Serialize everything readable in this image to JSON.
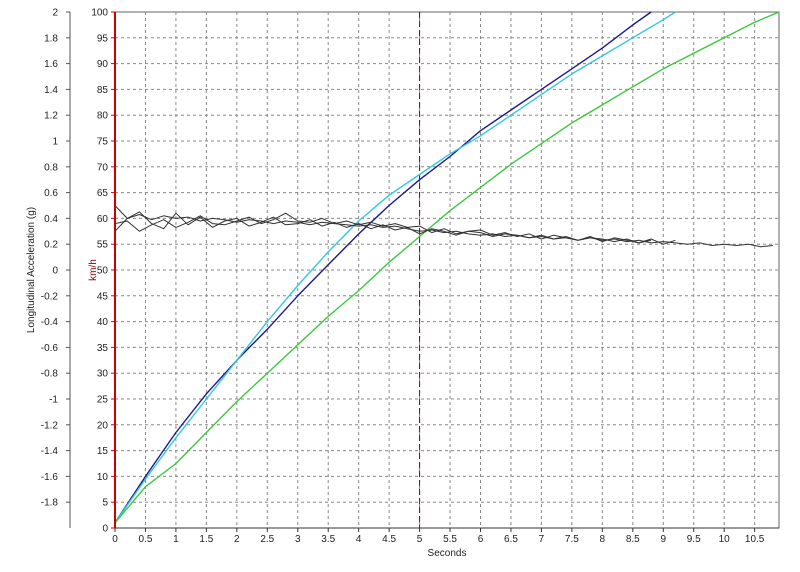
{
  "chart_data": {
    "type": "line",
    "title": "",
    "xlabel": "Seconds",
    "ylabel_left": "Longitudinal Acceleration (g)",
    "ylabel_right": "km/h",
    "xlim": [
      0,
      10.9
    ],
    "ylim_left": [
      -2,
      2
    ],
    "ylim_right": [
      0,
      100
    ],
    "grid": true,
    "cursor_x": 5,
    "x_ticks": [
      "0",
      "0.5",
      "1",
      "1.5",
      "2",
      "2.5",
      "3",
      "3.5",
      "4",
      "4.5",
      "5",
      "5.5",
      "6",
      "6.5",
      "7",
      "7.5",
      "8",
      "8.5",
      "9",
      "9.5",
      "10",
      "10.5"
    ],
    "y_left_ticks": [
      "2",
      "1.8",
      "1.6",
      "1.4",
      "1.2",
      "1",
      "0.8",
      "0.6",
      "0.4",
      "0.2",
      "0",
      "-0.2",
      "-0.4",
      "-0.6",
      "-0.8",
      "-1",
      "-1.2",
      "-1.4",
      "-1.6",
      "-1.8"
    ],
    "y_right_ticks": [
      "100",
      "95",
      "90",
      "85",
      "80",
      "75",
      "70",
      "65",
      "60",
      "55",
      "50",
      "45",
      "40",
      "35",
      "30",
      "25",
      "20",
      "15",
      "10",
      "5",
      "0"
    ],
    "colors": {
      "speed_blue": "#1a1a8c",
      "speed_cyan": "#33c8e0",
      "speed_green": "#3cc83c",
      "accel": "#333333",
      "left_axis": "#555555",
      "right_axis": "#cc0000",
      "cursor": "#8b0000",
      "grid": "#888888"
    },
    "series": [
      {
        "axis": "right",
        "color_key": "speed_blue",
        "x": [
          0,
          0.5,
          1,
          1.5,
          2,
          2.5,
          3,
          3.5,
          4,
          4.5,
          5,
          5.5,
          6,
          6.5,
          7,
          7.5,
          8,
          8.5,
          8.8
        ],
        "y": [
          1,
          10,
          18.5,
          26,
          32.5,
          38.5,
          45,
          51,
          57,
          62.5,
          67.5,
          72,
          77,
          81,
          85,
          89,
          93,
          97.5,
          100
        ]
      },
      {
        "axis": "right",
        "color_key": "speed_cyan",
        "x": [
          0,
          0.5,
          1,
          1.5,
          2,
          2.5,
          3,
          3.5,
          4,
          4.5,
          5,
          5.5,
          6,
          6.5,
          7,
          7.5,
          8,
          8.5,
          9,
          9.2
        ],
        "y": [
          1,
          9.5,
          17.5,
          25,
          32.5,
          40,
          47,
          53.5,
          59.5,
          64.5,
          68.5,
          72.5,
          76,
          80,
          84,
          88,
          91.5,
          95,
          98.5,
          100
        ]
      },
      {
        "axis": "right",
        "color_key": "speed_green",
        "x": [
          0,
          0.5,
          1,
          1.5,
          2,
          2.5,
          3,
          3.5,
          4,
          4.5,
          5,
          5.5,
          6,
          6.5,
          7,
          7.5,
          8,
          8.5,
          9,
          9.5,
          10,
          10.5,
          10.9
        ],
        "y": [
          1,
          8,
          12.5,
          18.5,
          24.5,
          30,
          35.5,
          41,
          46,
          51.5,
          56.5,
          61.5,
          66,
          70.5,
          74.5,
          78.5,
          82,
          85.5,
          89,
          92,
          95,
          98,
          100
        ]
      },
      {
        "axis": "left",
        "color_key": "accel",
        "x": [
          0,
          0.2,
          0.4,
          0.6,
          0.8,
          1,
          1.2,
          1.4,
          1.6,
          1.8,
          2,
          2.2,
          2.4,
          2.6,
          2.8,
          3,
          3.2,
          3.4,
          3.6,
          3.8,
          4,
          4.2,
          4.4,
          4.6,
          4.8,
          5,
          5.2,
          5.4,
          5.6,
          5.8,
          6,
          6.2,
          6.4,
          6.6,
          6.8,
          7,
          7.2,
          7.4,
          7.6,
          7.8,
          8,
          8.2,
          8.4,
          8.6,
          8.8,
          9,
          9.2,
          9.4,
          9.6,
          9.8,
          10,
          10.2,
          10.4,
          10.6,
          10.8
        ],
        "y": [
          0.5,
          0.4,
          0.43,
          0.39,
          0.42,
          0.4,
          0.41,
          0.38,
          0.4,
          0.39,
          0.37,
          0.39,
          0.38,
          0.36,
          0.38,
          0.37,
          0.35,
          0.37,
          0.36,
          0.35,
          0.34,
          0.35,
          0.33,
          0.34,
          0.32,
          0.3,
          0.31,
          0.29,
          0.3,
          0.28,
          0.27,
          0.28,
          0.26,
          0.27,
          0.25,
          0.26,
          0.24,
          0.25,
          0.23,
          0.25,
          0.23,
          0.24,
          0.22,
          0.23,
          0.21,
          0.22,
          0.21,
          0.2,
          0.21,
          0.19,
          0.2,
          0.19,
          0.2,
          0.18,
          0.19
        ]
      },
      {
        "axis": "left",
        "color_key": "accel",
        "x": [
          0,
          0.2,
          0.4,
          0.6,
          0.8,
          1,
          1.2,
          1.4,
          1.6,
          1.8,
          2,
          2.2,
          2.4,
          2.6,
          2.8,
          3,
          3.2,
          3.4,
          3.6,
          3.8,
          4,
          4.2,
          4.4,
          4.6,
          4.8,
          5,
          5.2,
          5.4,
          5.6,
          5.8,
          6,
          6.2,
          6.4,
          6.6,
          6.8,
          7,
          7.2,
          7.4,
          7.6,
          7.8,
          8,
          8.2,
          8.4,
          8.6,
          8.8,
          9,
          9.2
        ],
        "y": [
          0.3,
          0.4,
          0.45,
          0.36,
          0.32,
          0.44,
          0.35,
          0.41,
          0.33,
          0.38,
          0.4,
          0.34,
          0.37,
          0.41,
          0.35,
          0.36,
          0.39,
          0.34,
          0.37,
          0.33,
          0.36,
          0.32,
          0.35,
          0.31,
          0.33,
          0.34,
          0.29,
          0.32,
          0.28,
          0.3,
          0.31,
          0.27,
          0.29,
          0.26,
          0.28,
          0.24,
          0.27,
          0.25,
          0.23,
          0.26,
          0.22,
          0.25,
          0.23,
          0.21,
          0.24,
          0.2,
          0.23
        ]
      },
      {
        "axis": "left",
        "color_key": "accel",
        "x": [
          0,
          0.2,
          0.4,
          0.6,
          0.8,
          1,
          1.2,
          1.4,
          1.6,
          1.8,
          2,
          2.2,
          2.4,
          2.6,
          2.8,
          3,
          3.2,
          3.4,
          3.6,
          3.8,
          4,
          4.2,
          4.4,
          4.6,
          4.8,
          5,
          5.2,
          5.4,
          5.6,
          5.8,
          6,
          6.2,
          6.4,
          6.6,
          6.8,
          7,
          7.2,
          7.4,
          7.6,
          7.8,
          8,
          8.2,
          8.4,
          8.6,
          8.8
        ],
        "y": [
          0.36,
          0.38,
          0.3,
          0.35,
          0.39,
          0.33,
          0.37,
          0.42,
          0.36,
          0.35,
          0.38,
          0.41,
          0.36,
          0.39,
          0.44,
          0.38,
          0.37,
          0.4,
          0.36,
          0.38,
          0.35,
          0.37,
          0.34,
          0.36,
          0.33,
          0.28,
          0.32,
          0.3,
          0.27,
          0.3,
          0.29,
          0.26,
          0.28,
          0.27,
          0.25,
          0.27,
          0.24,
          0.26,
          0.23,
          0.25,
          0.24,
          0.22,
          0.24,
          0.21,
          0.23
        ]
      }
    ]
  }
}
